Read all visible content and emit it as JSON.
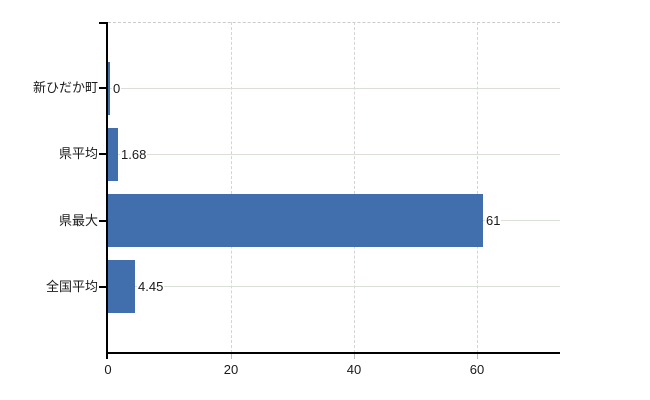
{
  "chart_data": {
    "type": "bar",
    "orientation": "horizontal",
    "title": "",
    "xlabel": "",
    "ylabel": "",
    "categories": [
      "新ひだか町",
      "県平均",
      "県最大",
      "全国平均"
    ],
    "values": [
      0,
      1.68,
      61,
      4.45
    ],
    "value_labels": [
      "0",
      "1.68",
      "61",
      "4.45"
    ],
    "xticks": [
      0,
      20,
      40,
      60
    ],
    "xtick_labels": [
      "0",
      "20",
      "40",
      "60"
    ],
    "xlim": [
      0,
      73.5
    ],
    "grid": true,
    "legend": null,
    "colors": {
      "bar": "#416fae",
      "h_gridline": "#dae0d8",
      "v_gridline": "#d6d2d6",
      "plot_border": "#cbcbcb",
      "axis": "#000000",
      "text": "#1a1a1a"
    }
  }
}
